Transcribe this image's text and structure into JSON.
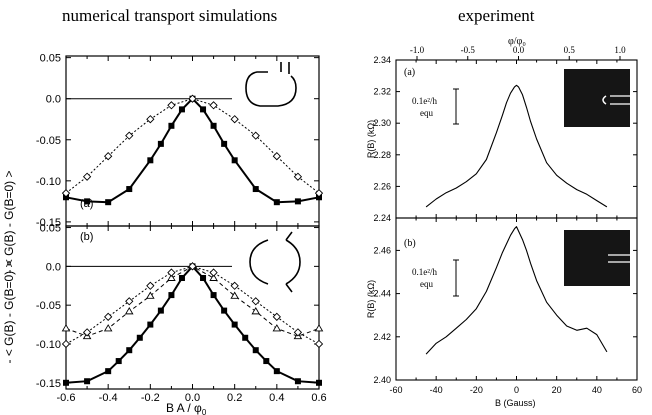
{
  "headers": {
    "left": "numerical transport simulations",
    "right": "experiment"
  },
  "left": {
    "ylabel": "- < G(B) - G(B=0) >",
    "xlabel": "B A / φ",
    "xlabel_sub": "0",
    "xticks": [
      "-0.6",
      "-0.4",
      "-0.2",
      "0.0",
      "0.2",
      "0.4",
      "0.6"
    ],
    "xticks_val": [
      -0.6,
      -0.4,
      -0.2,
      0.0,
      0.2,
      0.4,
      0.6
    ],
    "panel_a": {
      "label": "(a)",
      "yticks": [
        "0.05",
        "0.0",
        "-0.05",
        "-0.10",
        "-0.15"
      ],
      "yticks_val": [
        0.05,
        0.0,
        -0.05,
        -0.1,
        -0.15
      ],
      "ylim": [
        -0.155,
        0.052
      ]
    },
    "panel_b": {
      "label": "(b)",
      "yticks": [
        "0.05",
        "0.0",
        "-0.05",
        "-0.10",
        "-0.15"
      ],
      "yticks_val": [
        0.05,
        0.0,
        -0.05,
        -0.1,
        -0.15
      ],
      "ylim": [
        -0.158,
        0.052
      ]
    }
  },
  "right": {
    "top_axis_label": "φ/φ₀",
    "top_ticks": [
      "-1.0",
      "-0.5",
      "0.0",
      "0.5",
      "1.0"
    ],
    "top_ticks_val": [
      -1.0,
      -0.5,
      0.0,
      0.5,
      1.0
    ],
    "xlabel": "B (Gauss)",
    "xticks": [
      "-60",
      "-40",
      "-20",
      "0",
      "20",
      "40",
      "60"
    ],
    "xticks_val": [
      -60,
      -40,
      -20,
      0,
      20,
      40,
      60
    ],
    "panel_a": {
      "label": "(a)",
      "ylabel": "R(B) (kΩ)",
      "yticks": [
        "2.34",
        "2.32",
        "2.30",
        "2.28",
        "2.26",
        "2.24"
      ],
      "yticks_val": [
        2.34,
        2.32,
        2.3,
        2.28,
        2.26,
        2.24
      ],
      "ylim": [
        2.24,
        2.34
      ],
      "scale_label": "0.1e²/h",
      "scale_label2": "equ"
    },
    "panel_b": {
      "label": "(b)",
      "ylabel": "R(B) (kΩ)",
      "yticks": [
        "2.46",
        "2.44",
        "2.42",
        "2.40"
      ],
      "yticks_val": [
        2.46,
        2.44,
        2.42,
        2.4
      ],
      "ylim": [
        2.4,
        2.475
      ],
      "scale_label": "0.1e²/h",
      "scale_label2": "equ"
    }
  },
  "chart_data": [
    {
      "type": "line",
      "panel": "left (a)",
      "xlim": [
        -0.6,
        0.6
      ],
      "ylim": [
        -0.155,
        0.052
      ],
      "series": [
        {
          "marker": "square",
          "style": "solid",
          "x": [
            -0.6,
            -0.5,
            -0.4,
            -0.3,
            -0.2,
            -0.15,
            -0.1,
            -0.05,
            0.0,
            0.05,
            0.1,
            0.15,
            0.2,
            0.3,
            0.4,
            0.5,
            0.6
          ],
          "y": [
            -0.12,
            -0.125,
            -0.126,
            -0.11,
            -0.075,
            -0.055,
            -0.033,
            -0.013,
            0.0,
            -0.013,
            -0.033,
            -0.055,
            -0.075,
            -0.11,
            -0.126,
            -0.125,
            -0.12
          ]
        },
        {
          "marker": "diamond",
          "style": "dotted",
          "x": [
            -0.6,
            -0.5,
            -0.4,
            -0.3,
            -0.2,
            -0.1,
            0.0,
            0.1,
            0.2,
            0.3,
            0.4,
            0.5,
            0.6
          ],
          "y": [
            -0.115,
            -0.095,
            -0.07,
            -0.045,
            -0.025,
            -0.008,
            0.0,
            -0.008,
            -0.025,
            -0.045,
            -0.07,
            -0.095,
            -0.115
          ]
        }
      ]
    },
    {
      "type": "line",
      "panel": "left (b)",
      "xlim": [
        -0.6,
        0.6
      ],
      "ylim": [
        -0.158,
        0.052
      ],
      "series": [
        {
          "marker": "square",
          "style": "solid",
          "x": [
            -0.6,
            -0.5,
            -0.4,
            -0.35,
            -0.3,
            -0.25,
            -0.2,
            -0.15,
            -0.1,
            -0.05,
            0.0,
            0.05,
            0.1,
            0.15,
            0.2,
            0.25,
            0.3,
            0.35,
            0.4,
            0.5,
            0.6
          ],
          "y": [
            -0.15,
            -0.148,
            -0.135,
            -0.122,
            -0.108,
            -0.092,
            -0.075,
            -0.057,
            -0.037,
            -0.015,
            0.0,
            -0.015,
            -0.037,
            -0.057,
            -0.075,
            -0.092,
            -0.108,
            -0.122,
            -0.135,
            -0.148,
            -0.15
          ]
        },
        {
          "marker": "triangle",
          "style": "dashed",
          "x": [
            -0.6,
            -0.5,
            -0.4,
            -0.3,
            -0.2,
            -0.1,
            0.0,
            0.1,
            0.2,
            0.3,
            0.4,
            0.5,
            0.6
          ],
          "y": [
            -0.08,
            -0.09,
            -0.08,
            -0.058,
            -0.038,
            -0.015,
            0.0,
            -0.015,
            -0.038,
            -0.058,
            -0.08,
            -0.09,
            -0.08
          ]
        },
        {
          "marker": "diamond",
          "style": "dotted",
          "x": [
            -0.6,
            -0.5,
            -0.4,
            -0.3,
            -0.2,
            -0.1,
            0.0,
            0.1,
            0.2,
            0.3,
            0.4,
            0.5,
            0.6
          ],
          "y": [
            -0.1,
            -0.085,
            -0.065,
            -0.045,
            -0.025,
            -0.008,
            0.0,
            -0.008,
            -0.025,
            -0.045,
            -0.065,
            -0.085,
            -0.1
          ]
        }
      ]
    },
    {
      "type": "line",
      "panel": "right (a)",
      "xlim": [
        -60,
        60
      ],
      "ylim": [
        2.24,
        2.34
      ],
      "series": [
        {
          "style": "solid",
          "x": [
            -45,
            -40,
            -35,
            -30,
            -25,
            -20,
            -15,
            -10,
            -7,
            -5,
            -3,
            -1,
            0,
            1,
            3,
            5,
            7,
            10,
            15,
            20,
            25,
            30,
            35,
            40,
            45
          ],
          "y": [
            2.247,
            2.252,
            2.256,
            2.259,
            2.263,
            2.268,
            2.277,
            2.294,
            2.305,
            2.313,
            2.319,
            2.323,
            2.324,
            2.323,
            2.318,
            2.31,
            2.301,
            2.29,
            2.275,
            2.267,
            2.262,
            2.258,
            2.255,
            2.251,
            2.247
          ]
        }
      ]
    },
    {
      "type": "line",
      "panel": "right (b)",
      "xlim": [
        -60,
        60
      ],
      "ylim": [
        2.4,
        2.475
      ],
      "series": [
        {
          "style": "solid",
          "x": [
            -45,
            -40,
            -35,
            -30,
            -25,
            -20,
            -15,
            -10,
            -7,
            -5,
            -3,
            -1,
            0,
            1,
            3,
            5,
            7,
            10,
            15,
            20,
            25,
            30,
            35,
            40,
            45
          ],
          "y": [
            2.412,
            2.417,
            2.42,
            2.424,
            2.428,
            2.433,
            2.441,
            2.452,
            2.459,
            2.463,
            2.467,
            2.47,
            2.471,
            2.469,
            2.465,
            2.46,
            2.454,
            2.446,
            2.436,
            2.43,
            2.425,
            2.423,
            2.424,
            2.421,
            2.413
          ]
        }
      ]
    }
  ]
}
